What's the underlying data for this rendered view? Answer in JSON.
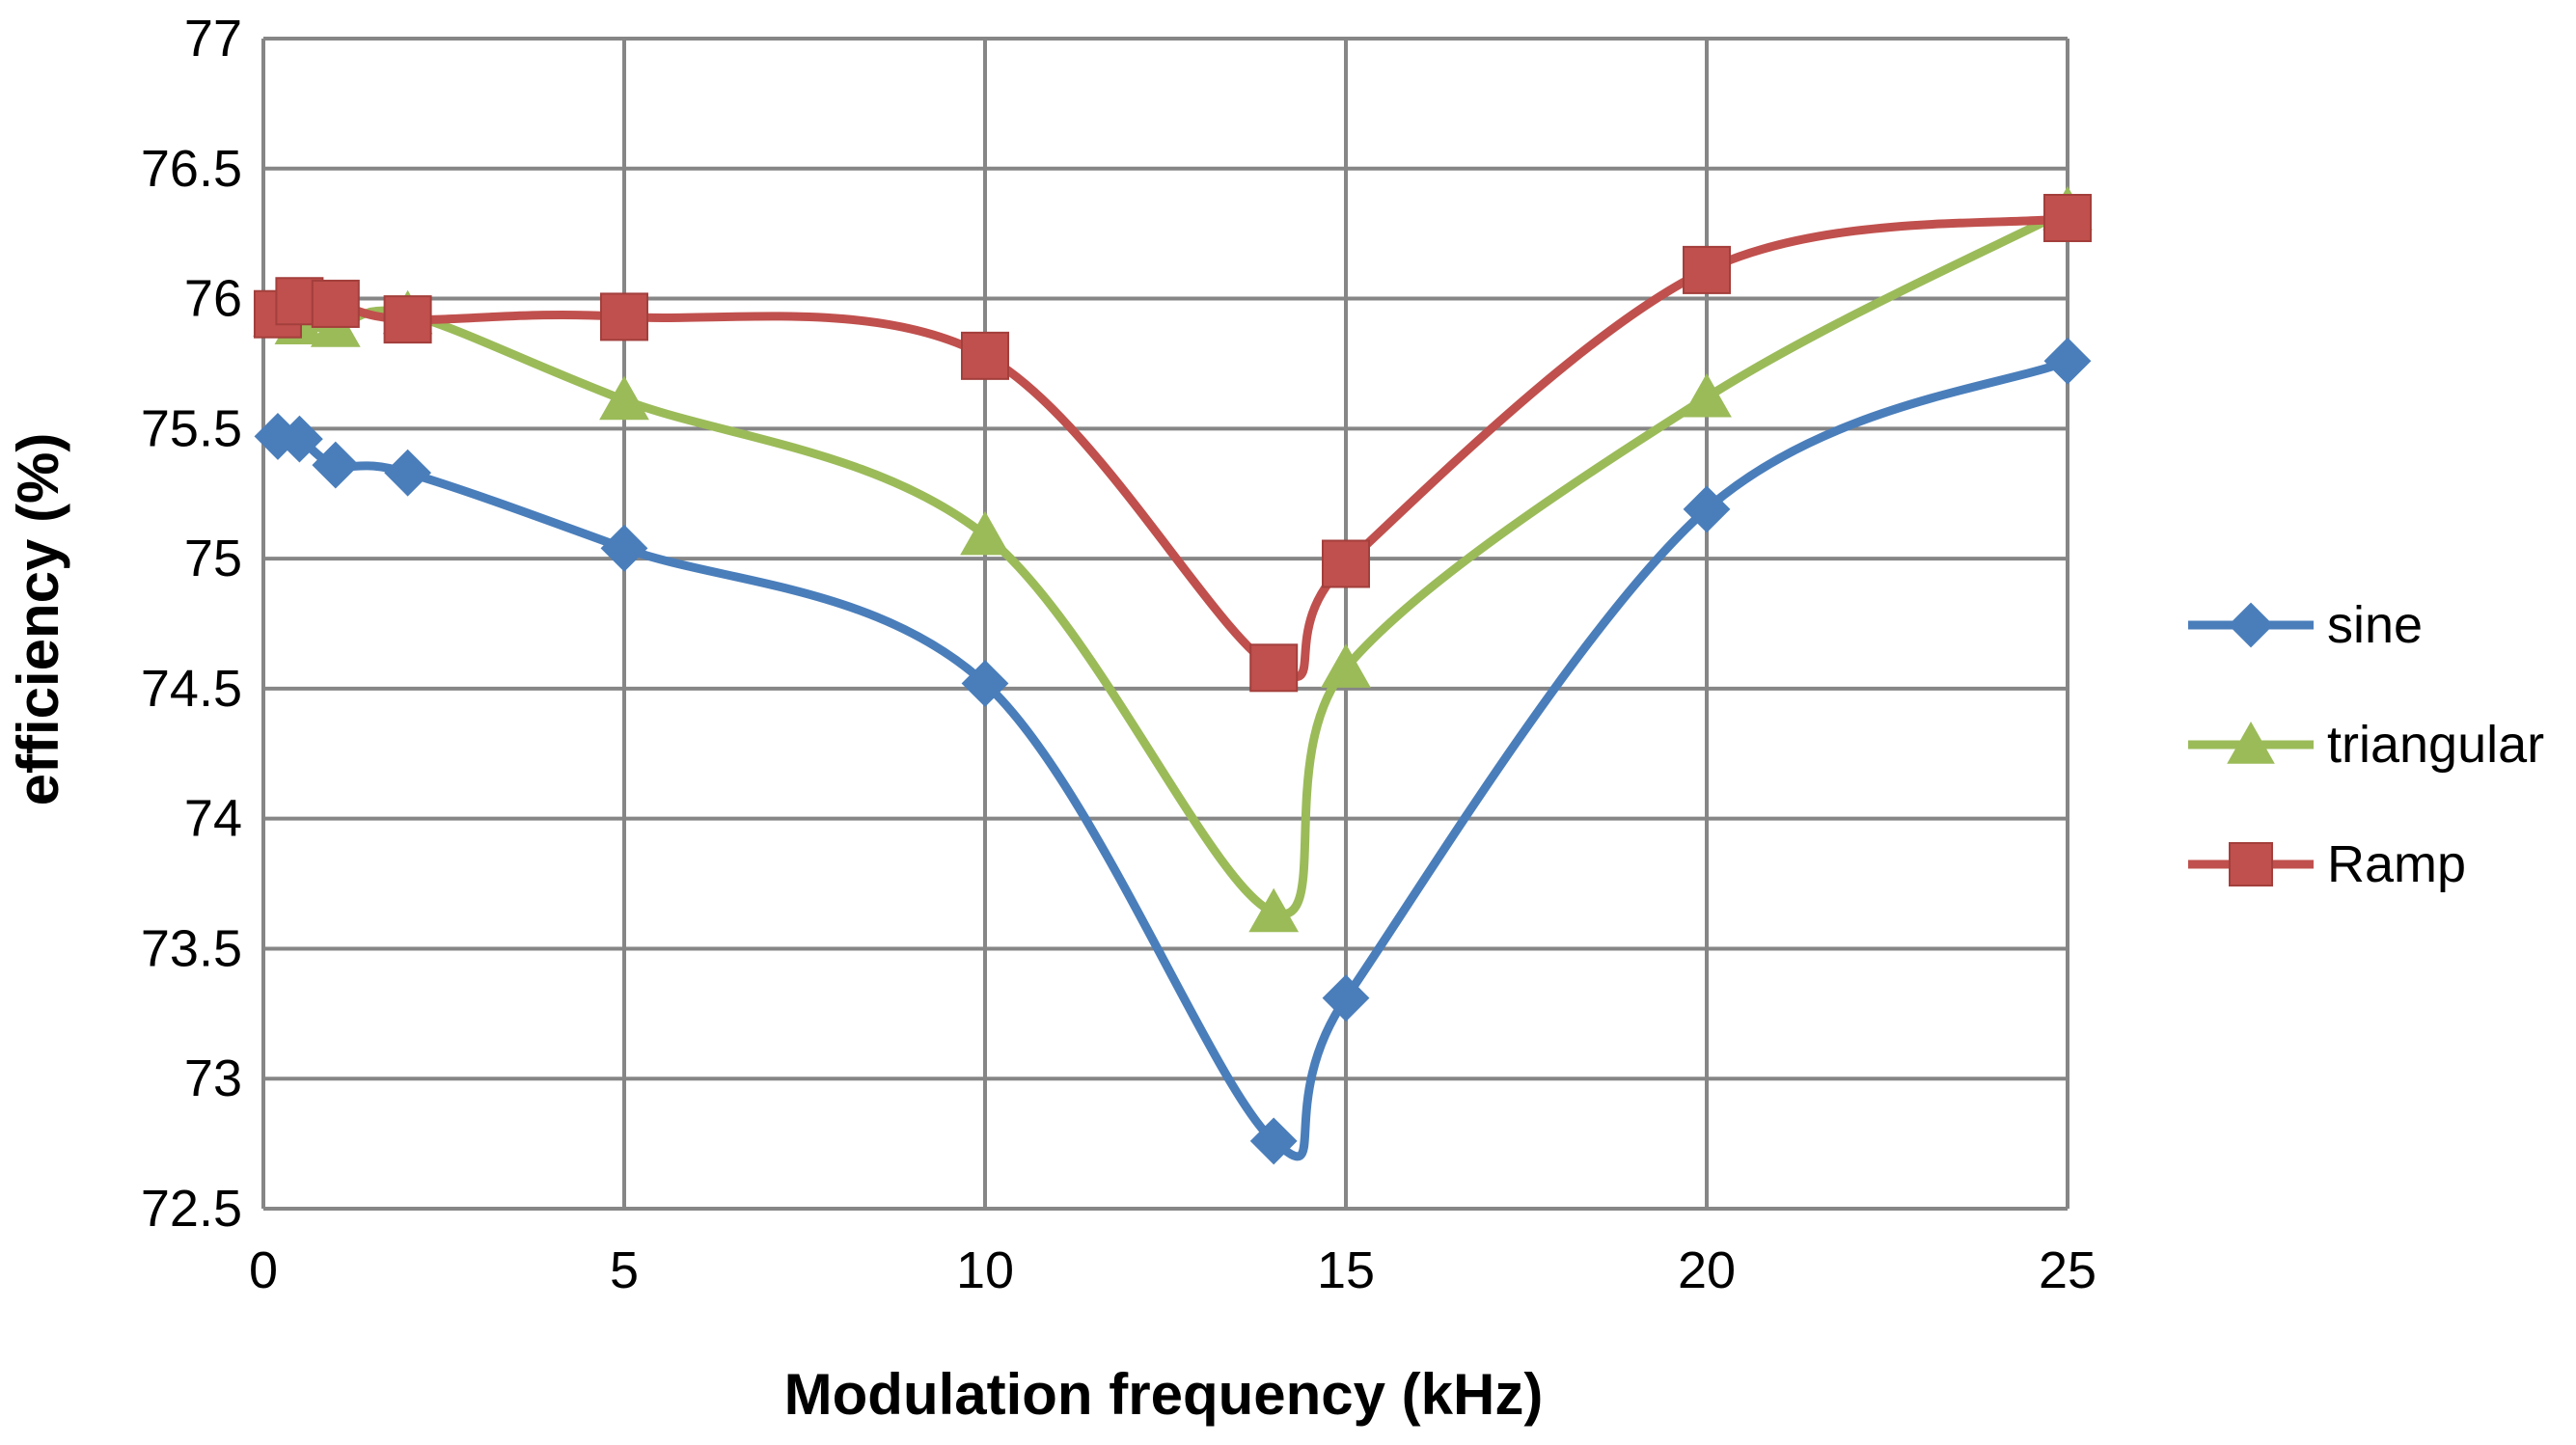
{
  "chart_data": {
    "type": "line",
    "title": "",
    "xlabel": "Modulation frequency (kHz)",
    "ylabel": "efficiency (%)",
    "xlim": [
      0,
      25
    ],
    "ylim": [
      72.5,
      77
    ],
    "xticks": [
      0,
      5,
      10,
      15,
      20,
      25
    ],
    "yticks": [
      72.5,
      73,
      73.5,
      74,
      74.5,
      75,
      75.5,
      76,
      76.5,
      77
    ],
    "xtick_labels": [
      "0",
      "5",
      "10",
      "15",
      "20",
      "25"
    ],
    "ytick_labels": [
      "72.5",
      "73",
      "73.5",
      "74",
      "74.5",
      "75",
      "75.5",
      "76",
      "76.5",
      "77"
    ],
    "grid": true,
    "legend_position": "right",
    "series": [
      {
        "name": "sine",
        "color": "#4a7ebb",
        "marker": "diamond",
        "x": [
          0.2,
          0.5,
          1,
          2,
          5,
          10,
          14,
          15,
          20,
          25
        ],
        "y": [
          75.47,
          75.46,
          75.36,
          75.33,
          75.04,
          74.52,
          72.76,
          73.31,
          75.19,
          75.76
        ]
      },
      {
        "name": "triangular",
        "color": "#9bbb59",
        "marker": "triangle",
        "x": [
          0.2,
          0.5,
          1,
          2,
          5,
          10,
          14,
          15,
          20,
          25
        ],
        "y": [
          75.93,
          75.9,
          75.89,
          75.94,
          75.61,
          75.09,
          73.64,
          74.58,
          75.62,
          76.34
        ]
      },
      {
        "name": "Ramp",
        "color": "#c0504d",
        "marker": "square",
        "x": [
          0.2,
          0.5,
          1,
          2,
          5,
          10,
          14,
          15,
          20,
          25
        ],
        "y": [
          75.94,
          75.99,
          75.98,
          75.92,
          75.93,
          75.78,
          74.58,
          74.98,
          76.11,
          76.31
        ]
      }
    ]
  }
}
